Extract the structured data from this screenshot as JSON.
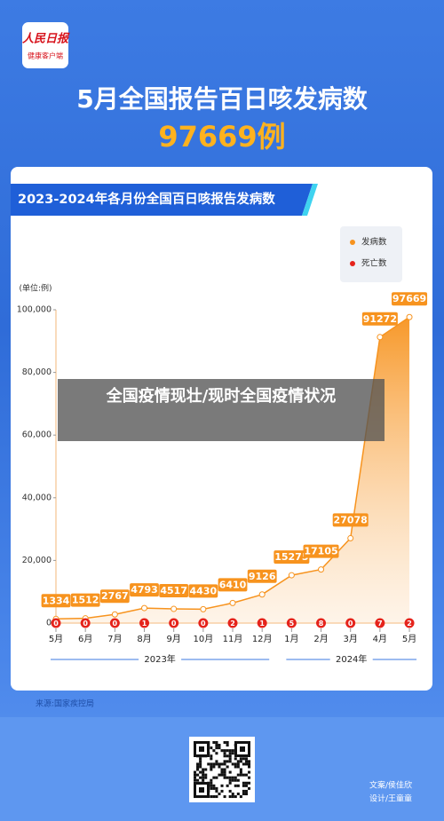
{
  "header": {
    "logo": "人民日报",
    "logo_sub": "健康客户端",
    "title": "5月全国报告百日咳发病数",
    "highlight": "97669例"
  },
  "chart_data": {
    "type": "area",
    "title": "2023-2024年各月份全国百日咳报告发病数",
    "y_label": "(单位:例)",
    "categories": [
      "5月",
      "6月",
      "7月",
      "8月",
      "9月",
      "10月",
      "11月",
      "12月",
      "1月",
      "2月",
      "3月",
      "4月",
      "5月"
    ],
    "year_labels": [
      "2023年",
      "2024年"
    ],
    "series": [
      {
        "name": "发病数",
        "color": "#f7931e",
        "values": [
          1334,
          1512,
          2767,
          4793,
          4517,
          4430,
          6410,
          9126,
          15275,
          17105,
          27078,
          91272,
          97669
        ]
      },
      {
        "name": "死亡数",
        "color": "#e5231b",
        "values": [
          0,
          0,
          0,
          1,
          0,
          0,
          2,
          1,
          5,
          8,
          0,
          7,
          2
        ]
      }
    ],
    "ylim": [
      0,
      100000
    ],
    "yticks": [
      0,
      {
        "value": 20000,
        "label": "20,000"
      },
      {
        "value": 40000,
        "label": "40,000"
      },
      {
        "value": 60000,
        "label": "60,000"
      },
      {
        "value": 80000,
        "label": "80,000"
      },
      {
        "value": 100000,
        "label": "100,000"
      }
    ],
    "legend": "top-right"
  },
  "overlay": "全国疫情现壮/现时全国疫情状况",
  "source": "来源:国家疾控局",
  "credits": [
    "文案/侯佳欣",
    "设计/王童童"
  ]
}
